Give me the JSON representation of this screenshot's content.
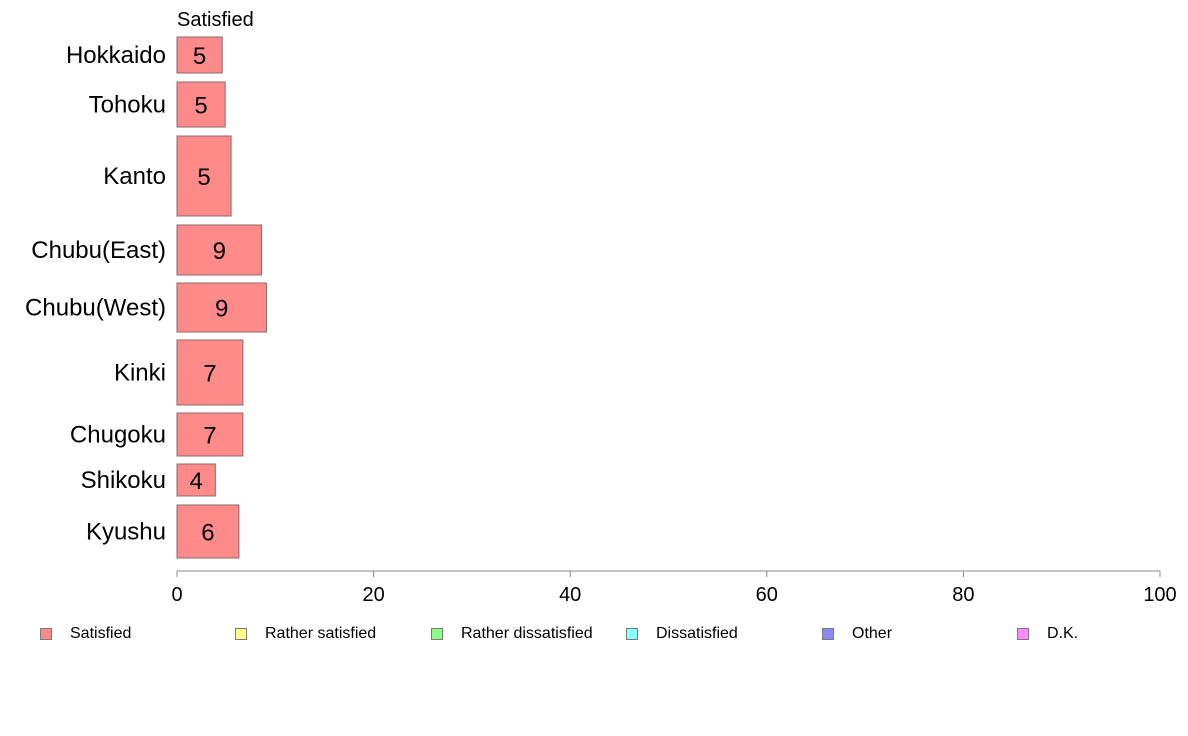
{
  "chart_data": {
    "type": "bar",
    "orientation": "horizontal",
    "stacked": true,
    "series_header": "Satisfied",
    "categories": [
      "Hokkaido",
      "Tohoku",
      "Kanto",
      "Chubu(East)",
      "Chubu(West)",
      "Kinki",
      "Chugoku",
      "Shikoku",
      "Kyushu"
    ],
    "series": [
      {
        "name": "Satisfied",
        "color": "#ff8a8a",
        "values": [
          4.6,
          4.9,
          5.5,
          8.6,
          9.1,
          6.7,
          6.7,
          3.9,
          6.3
        ],
        "labels": [
          "5",
          "5",
          "5",
          "9",
          "9",
          "7",
          "7",
          "4",
          "6"
        ]
      }
    ],
    "xlim": [
      0,
      100
    ],
    "xticks": [
      "0",
      "20",
      "40",
      "60",
      "80",
      "100"
    ],
    "grid": false,
    "legend_position": "bottom",
    "legend": [
      {
        "label": "Satisfied",
        "color": "#ff8a8a"
      },
      {
        "label": "Rather satisfied",
        "color": "#ffff8a"
      },
      {
        "label": "Rather dissatisfied",
        "color": "#8aff8a"
      },
      {
        "label": "Dissatisfied",
        "color": "#8affff"
      },
      {
        "label": "Other",
        "color": "#8a8aff"
      },
      {
        "label": "D.K.",
        "color": "#ff8aff"
      }
    ]
  }
}
